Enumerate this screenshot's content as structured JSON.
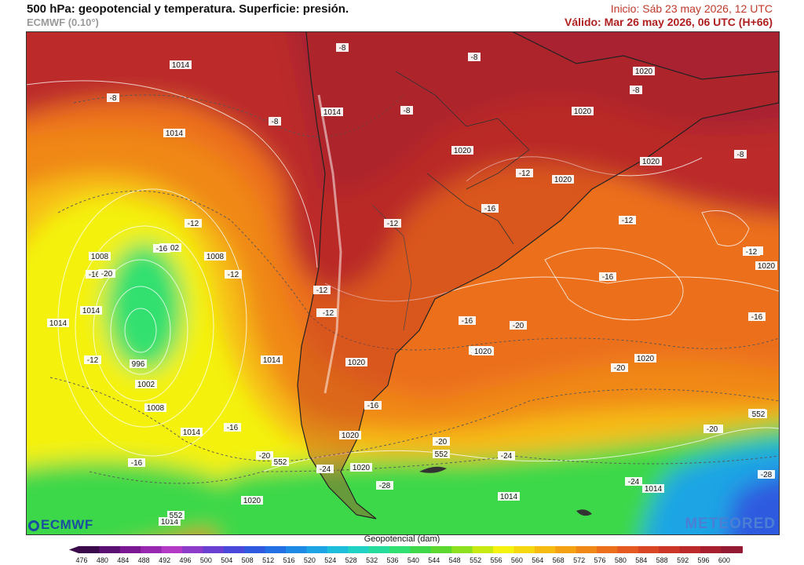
{
  "header": {
    "title": "500 hPa: geopotencial y temperatura. Superficie: presión.",
    "model": "ECMWF (0.10°)",
    "init": "Inicio: Sáb 23 may 2026, 12 UTC",
    "valid": "Válido: Mar 26 may 2026, 06 UTC (H+66)"
  },
  "legend": {
    "title": "Geopotencial (dam)",
    "ticks": [
      "476",
      "480",
      "484",
      "488",
      "492",
      "496",
      "500",
      "504",
      "508",
      "512",
      "516",
      "520",
      "524",
      "528",
      "532",
      "536",
      "540",
      "544",
      "548",
      "552",
      "556",
      "560",
      "564",
      "568",
      "572",
      "576",
      "580",
      "584",
      "588",
      "592",
      "596",
      "600"
    ],
    "colors": [
      "#3a0a4a",
      "#5a0f72",
      "#7a1894",
      "#9828b0",
      "#b23ac4",
      "#8c3cc8",
      "#6a40d2",
      "#4a48da",
      "#2f5ae0",
      "#2270e4",
      "#1d8ae6",
      "#1ca4e4",
      "#1cbedc",
      "#20d2c4",
      "#26dc9c",
      "#30e070",
      "#3ed84a",
      "#5cd82e",
      "#8ce01e",
      "#c6ea12",
      "#f4f20e",
      "#f6d810",
      "#f6bc12",
      "#f4a214",
      "#f08818",
      "#ec701c",
      "#e45a20",
      "#d84624",
      "#cc3628",
      "#bc2a2c",
      "#a82030",
      "#941a34"
    ]
  },
  "labels": [
    {
      "text": "1014"
    },
    {
      "text": "-8"
    },
    {
      "text": "1014"
    },
    {
      "text": "-8"
    },
    {
      "text": "-8"
    },
    {
      "text": "1014"
    },
    {
      "text": "-8"
    },
    {
      "text": "-8"
    },
    {
      "text": "1020"
    },
    {
      "text": "1020"
    },
    {
      "text": "-8"
    },
    {
      "text": "1020"
    },
    {
      "text": "1020"
    },
    {
      "text": "-8"
    },
    {
      "text": "-12"
    },
    {
      "text": "1020"
    },
    {
      "text": "-12"
    },
    {
      "text": "-12"
    },
    {
      "text": "1002"
    },
    {
      "text": "1008"
    },
    {
      "text": "-16"
    },
    {
      "text": "1008"
    },
    {
      "text": "-16"
    },
    {
      "text": "-20"
    },
    {
      "text": "-12"
    },
    {
      "text": "-12"
    },
    {
      "text": "1014"
    },
    {
      "text": "1014"
    },
    {
      "text": "-16"
    },
    {
      "text": "-12"
    },
    {
      "text": "1020"
    },
    {
      "text": "-16"
    },
    {
      "text": "-12"
    },
    {
      "text": "996"
    },
    {
      "text": "1014"
    },
    {
      "text": "1020"
    },
    {
      "text": "-16"
    },
    {
      "text": "1002"
    },
    {
      "text": "-16"
    },
    {
      "text": "1008"
    },
    {
      "text": "1014"
    },
    {
      "text": "-16"
    },
    {
      "text": "1020"
    },
    {
      "text": "-20"
    },
    {
      "text": "-16"
    },
    {
      "text": "-20"
    },
    {
      "text": "-16"
    },
    {
      "text": "-20"
    },
    {
      "text": "-24"
    },
    {
      "text": "1020"
    },
    {
      "text": "552"
    },
    {
      "text": "1020"
    },
    {
      "text": "-28"
    },
    {
      "text": "1014"
    },
    {
      "text": "-24"
    },
    {
      "text": "1014"
    },
    {
      "text": "-28"
    },
    {
      "text": "1020"
    },
    {
      "text": "1014"
    },
    {
      "text": "552"
    },
    {
      "text": "-20"
    },
    {
      "text": "552"
    },
    {
      "text": "552"
    },
    {
      "text": "-16"
    },
    {
      "text": "1020"
    },
    {
      "text": "-20"
    },
    {
      "text": "-16"
    },
    {
      "text": "1020"
    },
    {
      "text": "-12"
    },
    {
      "text": "-12"
    },
    {
      "text": "1020"
    },
    {
      "text": "-24"
    },
    {
      "text": "-20"
    },
    {
      "text": "552"
    }
  ],
  "logos": {
    "left": "ECMWF",
    "right": "METEORED"
  }
}
